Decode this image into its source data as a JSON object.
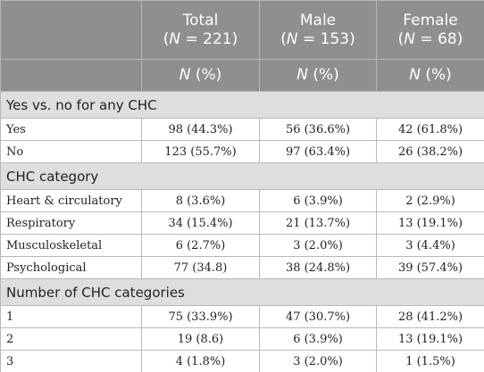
{
  "header": {
    "columns": [
      {
        "title": "Total",
        "n_open": "(",
        "n_symbol": "N",
        "n_rest": " = 221)",
        "stat_symbol": "N",
        "stat_rest": " (%)"
      },
      {
        "title": "Male",
        "n_open": "(",
        "n_symbol": "N",
        "n_rest": " = 153)",
        "stat_symbol": "N",
        "stat_rest": " (%)"
      },
      {
        "title": "Female",
        "n_open": "(",
        "n_symbol": "N",
        "n_rest": " = 68)",
        "stat_symbol": "N",
        "stat_rest": " (%)"
      }
    ]
  },
  "sections": [
    {
      "title": "Yes vs. no for any CHC",
      "rows": [
        [
          "Yes",
          "98 (44.3%)",
          "56 (36.6%)",
          "42 (61.8%)"
        ],
        [
          "No",
          "123 (55.7%)",
          "97 (63.4%)",
          "26 (38.2%)"
        ]
      ]
    },
    {
      "title": "CHC category",
      "rows": [
        [
          "Heart & circulatory",
          "8 (3.6%)",
          "6 (3.9%)",
          "2 (2.9%)"
        ],
        [
          "Respiratory",
          "34 (15.4%)",
          "21 (13.7%)",
          "13 (19.1%)"
        ],
        [
          "Musculoskeletal",
          "6 (2.7%)",
          "3 (2.0%)",
          "3 (4.4%)"
        ],
        [
          "Psychological",
          "77 (34.8)",
          "38 (24.8%)",
          "39 (57.4%)"
        ]
      ]
    },
    {
      "title": "Number of CHC categories",
      "rows": [
        [
          "1",
          "75 (33.9%)",
          "47 (30.7%)",
          "28 (41.2%)"
        ],
        [
          "2",
          "19 (8.6)",
          "6 (3.9%)",
          "13 (19.1%)"
        ],
        [
          "3",
          "4 (1.8%)",
          "3 (2.0%)",
          "1 (1.5%)"
        ]
      ]
    }
  ]
}
